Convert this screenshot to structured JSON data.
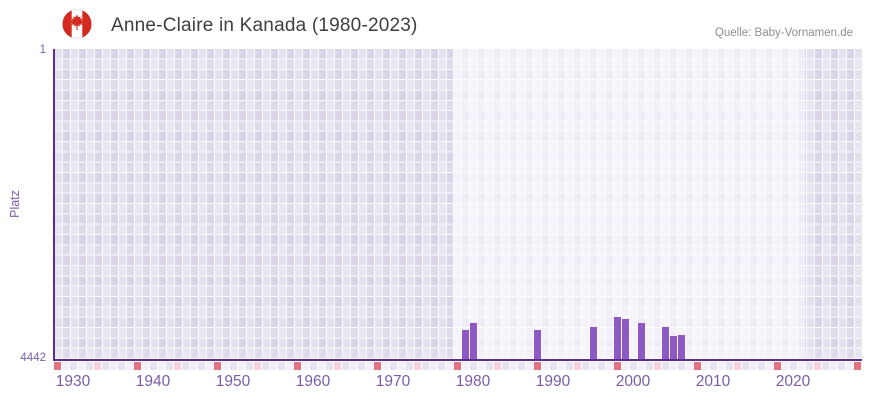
{
  "header": {
    "title": "Anne-Claire in Kanada (1980-2023)",
    "source": "Quelle: Baby-Vornamen.de",
    "flag_icon": "canada-flag"
  },
  "chart_data": {
    "type": "bar",
    "title": "Anne-Claire in Kanada (1980-2023)",
    "xlabel": "",
    "ylabel": "Platz",
    "y_axis": {
      "top_tick": "1",
      "bottom_tick": "4442",
      "min": 1,
      "max": 4442,
      "inverted": true
    },
    "x_range_years": [
      1928,
      2028
    ],
    "x_tick_years": [
      1930,
      1940,
      1950,
      1960,
      1970,
      1980,
      1990,
      2000,
      2010,
      2020
    ],
    "highlight_band_years": [
      1978,
      2022
    ],
    "grid": true,
    "legend": "none",
    "bars": [
      {
        "year": 1979,
        "rank": 4030
      },
      {
        "year": 1980,
        "rank": 3920
      },
      {
        "year": 1988,
        "rank": 4030
      },
      {
        "year": 1995,
        "rank": 3990
      },
      {
        "year": 1998,
        "rank": 3845
      },
      {
        "year": 1999,
        "rank": 3865
      },
      {
        "year": 2001,
        "rank": 3920
      },
      {
        "year": 2004,
        "rank": 3980
      },
      {
        "year": 2005,
        "rank": 4110
      },
      {
        "year": 2006,
        "rank": 4095
      }
    ],
    "timeline_markers": {
      "red_years": [
        1928,
        1938,
        1948,
        1958,
        1968,
        1978,
        1988,
        1998,
        2008,
        2018,
        2028
      ],
      "pink_years": [
        1933,
        1943,
        1953,
        1963,
        1973,
        1983,
        1993,
        2003,
        2013,
        2023
      ]
    },
    "colors": {
      "bar": "#8e58c5",
      "axis_line": "#5b2d94",
      "tick_label": "#7c5ca8",
      "marker_red": "#e4737f",
      "marker_pink": "#f3d0da",
      "strip_even": "#e7e2f1",
      "strip_odd": "#f3f0f9",
      "band_outside": "#d9d4e7",
      "band_inside": "#efecf8",
      "title_text": "#3f3f3f",
      "source_text": "#8f8f8f",
      "flag_red": "#d52b1e"
    }
  }
}
